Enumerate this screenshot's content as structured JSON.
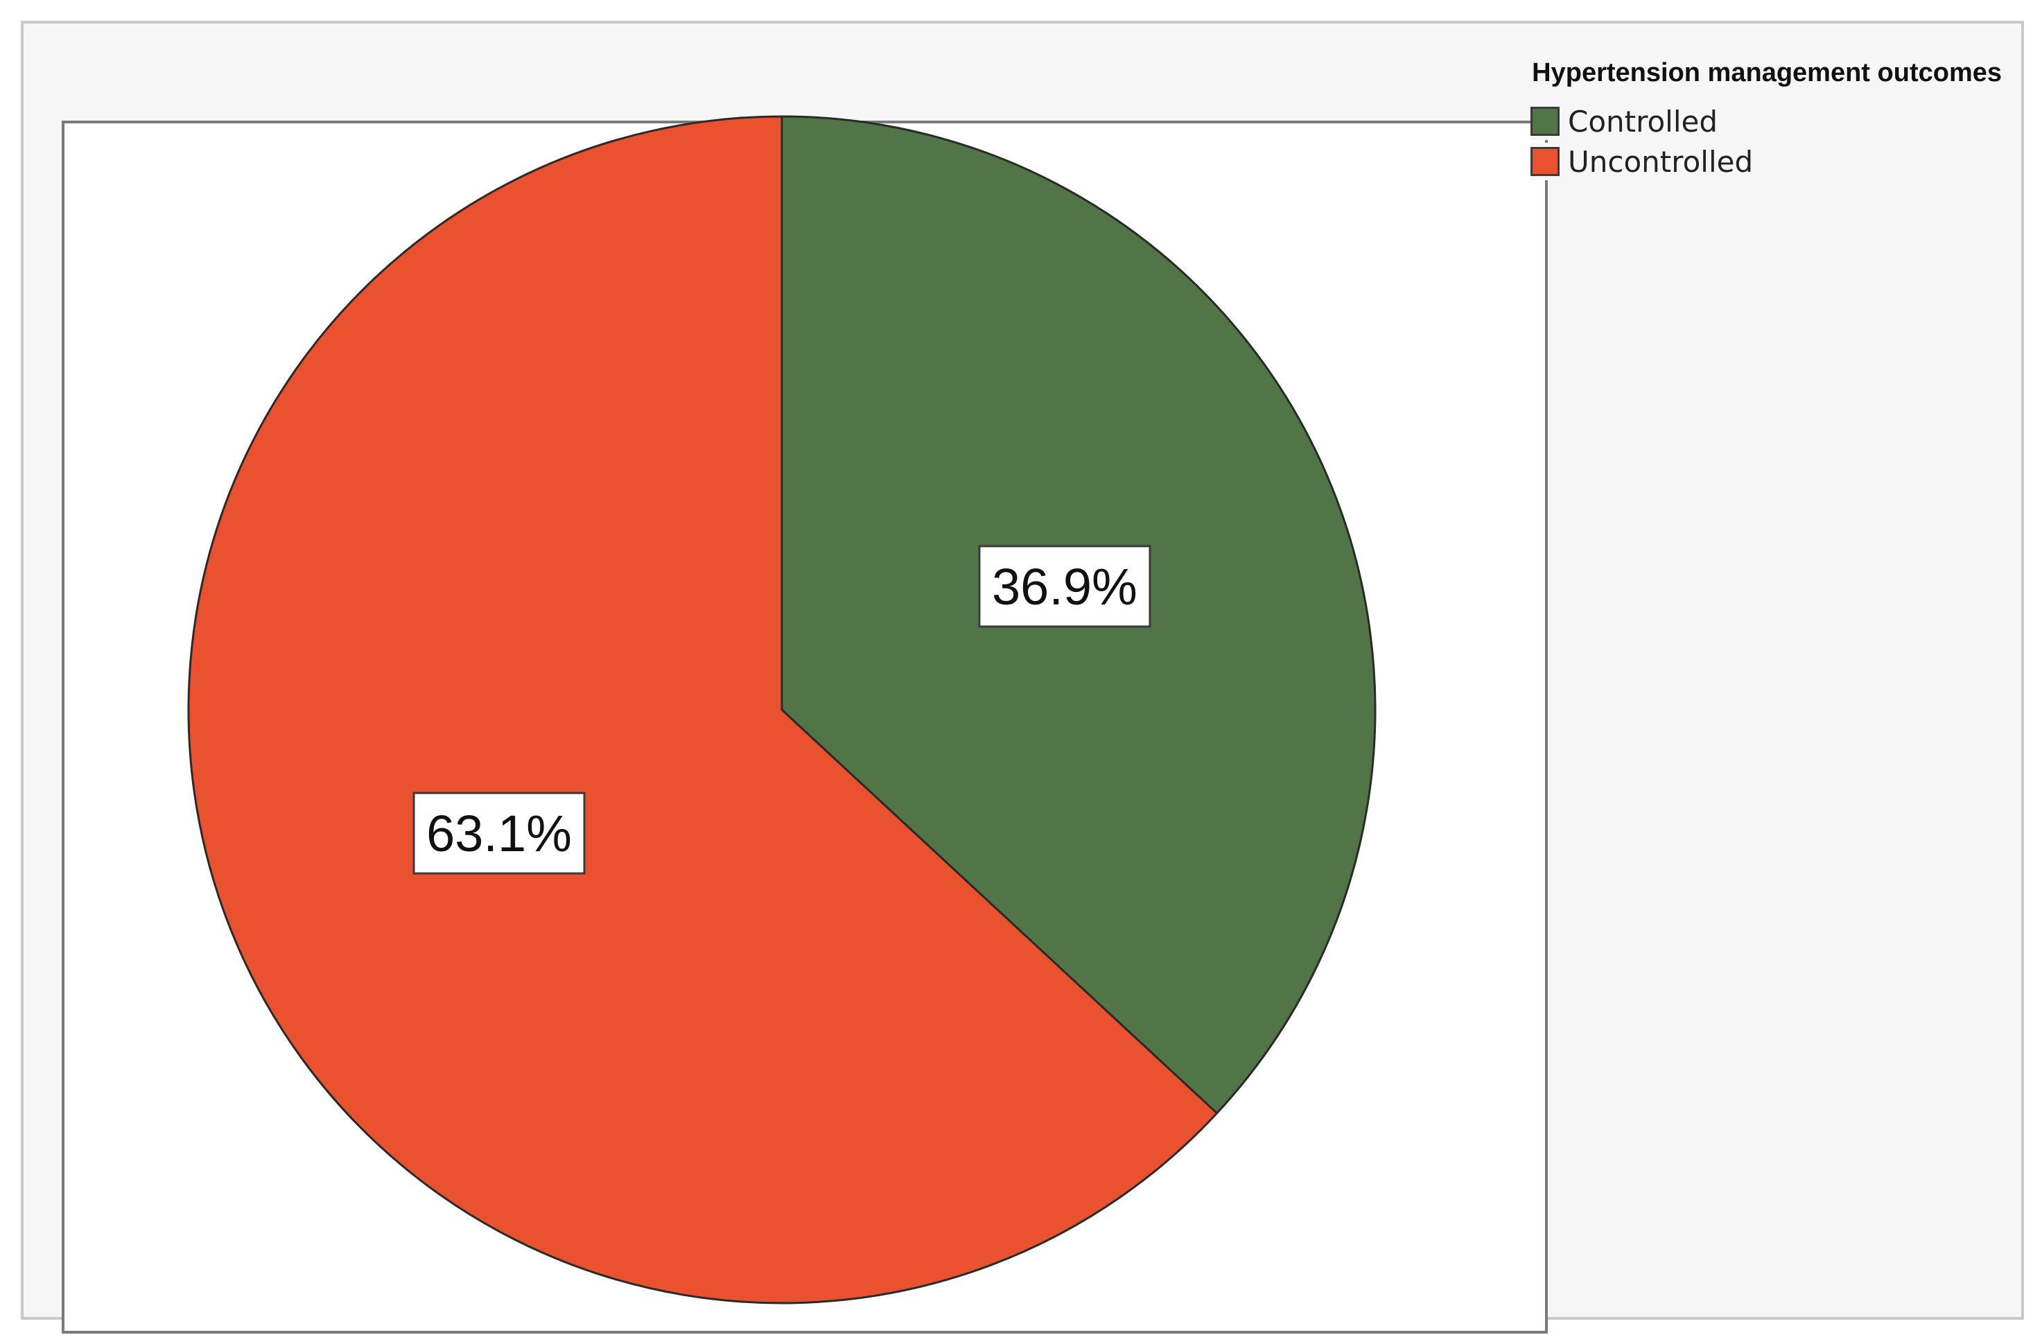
{
  "chart_data": {
    "type": "pie",
    "legend_title": "Hypertension management outcomes",
    "legend_position": "top-right",
    "start_angle_deg": 0,
    "direction": "clockwise",
    "slices": [
      {
        "name": "Controlled",
        "value": 36.9,
        "label": "36.9%",
        "color": "#517546"
      },
      {
        "name": "Uncontrolled",
        "value": 63.1,
        "label": "63.1%",
        "color": "#ea512f"
      }
    ]
  }
}
